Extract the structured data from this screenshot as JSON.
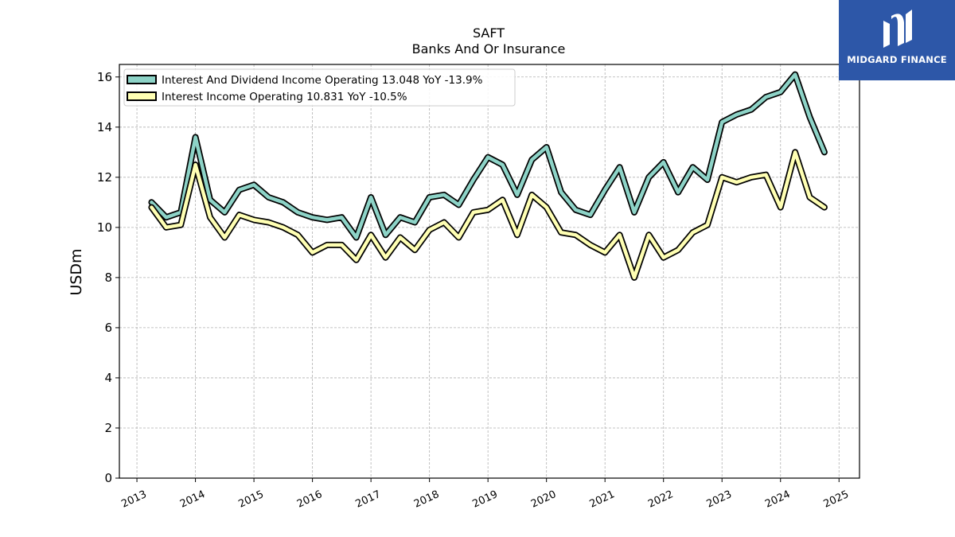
{
  "chart_data": {
    "type": "line",
    "title": "SAFT",
    "subtitle": "Banks And Or Insurance",
    "ylabel": "USDm",
    "xlabel": "",
    "ylim": [
      0,
      16.5
    ],
    "xlim": [
      2012.7,
      2025.35
    ],
    "yticks": [
      0,
      2,
      4,
      6,
      8,
      10,
      12,
      14,
      16
    ],
    "xticks": [
      "2013",
      "2014",
      "2015",
      "2016",
      "2017",
      "2018",
      "2019",
      "2020",
      "2021",
      "2022",
      "2023",
      "2024",
      "2025"
    ],
    "grid": true,
    "legend_position": "top-left",
    "series": [
      {
        "name": "Interest And Dividend Income Operating",
        "legend_label": "Interest And Dividend Income Operating  13.048 YoY -13.9%",
        "color": "#8dd3c7",
        "x": [
          2013.25,
          2013.5,
          2013.75,
          2014.0,
          2014.25,
          2014.5,
          2014.75,
          2015.0,
          2015.25,
          2015.5,
          2015.75,
          2016.0,
          2016.25,
          2016.5,
          2016.75,
          2017.0,
          2017.25,
          2017.5,
          2017.75,
          2018.0,
          2018.25,
          2018.5,
          2018.75,
          2019.0,
          2019.25,
          2019.5,
          2019.75,
          2020.0,
          2020.25,
          2020.5,
          2020.75,
          2021.0,
          2021.25,
          2021.5,
          2021.75,
          2022.0,
          2022.25,
          2022.5,
          2022.75,
          2023.0,
          2023.25,
          2023.5,
          2023.75,
          2024.0,
          2024.25,
          2024.5,
          2024.75
        ],
        "values": [
          11.0,
          10.4,
          10.6,
          13.6,
          11.1,
          10.6,
          11.5,
          11.7,
          11.2,
          11.0,
          10.6,
          10.4,
          10.3,
          10.4,
          9.6,
          11.2,
          9.7,
          10.4,
          10.2,
          11.2,
          11.3,
          10.9,
          11.9,
          12.8,
          12.5,
          11.3,
          12.7,
          13.2,
          11.4,
          10.7,
          10.5,
          11.5,
          12.4,
          10.6,
          12.0,
          12.6,
          11.4,
          12.4,
          11.9,
          14.2,
          14.5,
          14.7,
          15.2,
          15.4,
          16.1,
          14.4,
          13.0
        ]
      },
      {
        "name": "Interest Income Operating",
        "legend_label": "Interest Income Operating  10.831 YoY -10.5%",
        "color": "#ffffb3",
        "x": [
          2013.25,
          2013.5,
          2013.75,
          2014.0,
          2014.25,
          2014.5,
          2014.75,
          2015.0,
          2015.25,
          2015.5,
          2015.75,
          2016.0,
          2016.25,
          2016.5,
          2016.75,
          2017.0,
          2017.25,
          2017.5,
          2017.75,
          2018.0,
          2018.25,
          2018.5,
          2018.75,
          2019.0,
          2019.25,
          2019.5,
          2019.75,
          2020.0,
          2020.25,
          2020.5,
          2020.75,
          2021.0,
          2021.25,
          2021.5,
          2021.75,
          2022.0,
          2022.25,
          2022.5,
          2022.75,
          2023.0,
          2023.25,
          2023.5,
          2023.75,
          2024.0,
          2024.25,
          2024.5,
          2024.75
        ],
        "values": [
          10.8,
          10.0,
          10.1,
          12.5,
          10.4,
          9.6,
          10.5,
          10.3,
          10.2,
          10.0,
          9.7,
          9.0,
          9.3,
          9.3,
          8.7,
          9.7,
          8.8,
          9.6,
          9.1,
          9.9,
          10.2,
          9.6,
          10.6,
          10.7,
          11.1,
          9.7,
          11.3,
          10.8,
          9.8,
          9.7,
          9.3,
          9.0,
          9.7,
          8.0,
          9.7,
          8.8,
          9.1,
          9.8,
          10.1,
          12.0,
          11.8,
          12.0,
          12.1,
          10.8,
          13.0,
          11.2,
          10.8
        ]
      }
    ]
  },
  "logo": {
    "text": "MIDGARD FINANCE",
    "bg_color": "#2d57a8"
  }
}
